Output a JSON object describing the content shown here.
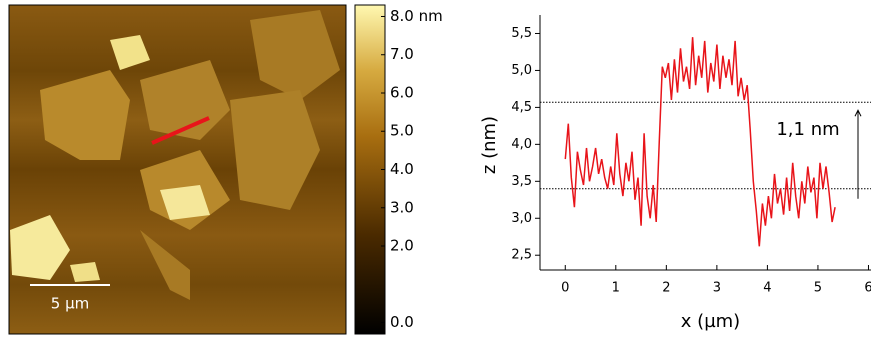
{
  "chart_data": [
    {
      "type": "image",
      "scale_bar_label": "5 µm",
      "colorbar": {
        "lim": [
          -0.3,
          8.3
        ],
        "ticks": [
          {
            "value": 8,
            "label": "8.0 nm"
          },
          {
            "value": 7,
            "label": "7.0"
          },
          {
            "value": 6,
            "label": "6.0"
          },
          {
            "value": 5,
            "label": "5.0"
          },
          {
            "value": 4,
            "label": "4.0"
          },
          {
            "value": 3,
            "label": "3.0"
          },
          {
            "value": 2,
            "label": "2.0"
          },
          {
            "value": 0,
            "label": "0.0"
          }
        ]
      }
    },
    {
      "type": "line",
      "x_label": "x (µm)",
      "y_label": "z (nm)",
      "annotation": "1,1 nm",
      "reference_lines": [
        4.57,
        3.4
      ],
      "xlim": [
        -0.5,
        6.05
      ],
      "ylim": [
        2.3,
        5.75
      ],
      "xticks": [
        0,
        1,
        2,
        3,
        4,
        5,
        6
      ],
      "yticks": [
        {
          "value": 2.5,
          "label": "2,5"
        },
        {
          "value": 3,
          "label": "3,0"
        },
        {
          "value": 3.5,
          "label": "3,5"
        },
        {
          "value": 4,
          "label": "4,0"
        },
        {
          "value": 4.5,
          "label": "4,5"
        },
        {
          "value": 5,
          "label": "5,0"
        },
        {
          "value": 5.5,
          "label": "5,5"
        }
      ],
      "x": [
        0,
        0.06,
        0.12,
        0.18,
        0.24,
        0.3,
        0.36,
        0.42,
        0.48,
        0.54,
        0.6,
        0.66,
        0.72,
        0.78,
        0.84,
        0.9,
        0.96,
        1.02,
        1.08,
        1.14,
        1.2,
        1.26,
        1.32,
        1.38,
        1.44,
        1.5,
        1.56,
        1.62,
        1.68,
        1.74,
        1.8,
        1.86,
        1.92,
        1.98,
        2.04,
        2.1,
        2.16,
        2.22,
        2.28,
        2.34,
        2.4,
        2.46,
        2.52,
        2.58,
        2.64,
        2.7,
        2.76,
        2.82,
        2.88,
        2.94,
        3.0,
        3.06,
        3.12,
        3.18,
        3.24,
        3.3,
        3.36,
        3.42,
        3.48,
        3.54,
        3.6,
        3.66,
        3.72,
        3.78,
        3.84,
        3.9,
        3.96,
        4.02,
        4.08,
        4.14,
        4.2,
        4.26,
        4.32,
        4.38,
        4.44,
        4.5,
        4.56,
        4.62,
        4.68,
        4.74,
        4.8,
        4.86,
        4.92,
        4.98,
        5.04,
        5.1,
        5.16,
        5.22,
        5.28,
        5.34
      ],
      "series": [
        {
          "color": "#e8141a",
          "values": [
            3.8,
            4.28,
            3.55,
            3.15,
            3.9,
            3.65,
            3.45,
            3.95,
            3.5,
            3.7,
            3.95,
            3.6,
            3.8,
            3.55,
            3.4,
            3.7,
            3.45,
            4.15,
            3.6,
            3.3,
            3.75,
            3.5,
            3.9,
            3.25,
            3.55,
            2.9,
            4.15,
            3.3,
            3.0,
            3.45,
            2.95,
            4.05,
            5.05,
            4.9,
            5.1,
            4.6,
            5.15,
            4.7,
            5.3,
            4.85,
            5.05,
            4.75,
            5.45,
            4.8,
            5.2,
            4.9,
            5.4,
            4.7,
            5.1,
            4.85,
            5.35,
            4.75,
            5.2,
            4.9,
            5.15,
            4.8,
            5.4,
            4.65,
            4.9,
            4.6,
            4.8,
            4.2,
            3.5,
            3.1,
            2.62,
            3.2,
            2.9,
            3.3,
            3.0,
            3.6,
            3.2,
            3.4,
            3.05,
            3.55,
            3.1,
            3.75,
            3.3,
            3.0,
            3.5,
            3.2,
            3.7,
            3.35,
            3.55,
            3.0,
            3.75,
            3.4,
            3.7,
            3.35,
            2.95,
            3.15
          ]
        }
      ]
    }
  ]
}
